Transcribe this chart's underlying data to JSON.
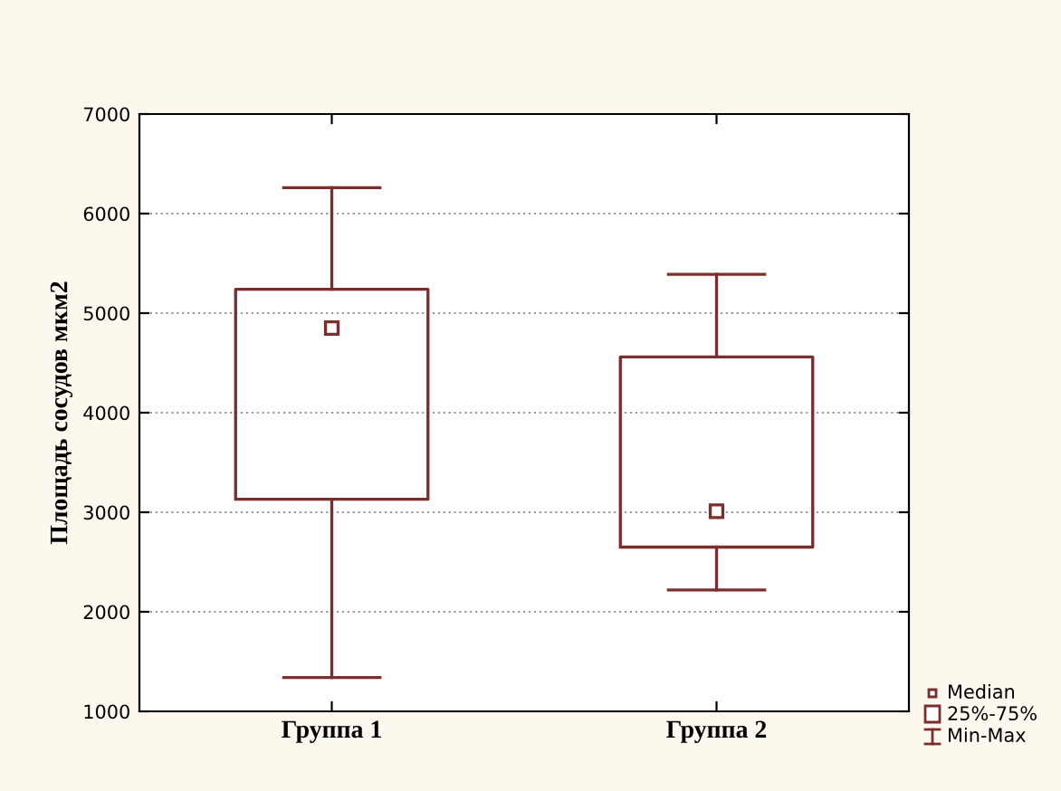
{
  "chart_data": {
    "type": "box",
    "ylabel": "Площадь сосудов мкм2",
    "categories": [
      "Группа 1",
      "Группа 2"
    ],
    "color": "#7b2e2e",
    "boxes": [
      {
        "low": 1340,
        "q1": 3130,
        "median": 4850,
        "q3": 5240,
        "high": 6260
      },
      {
        "low": 2220,
        "q1": 2650,
        "median": 3010,
        "q3": 4560,
        "high": 5390
      }
    ],
    "ylim": [
      1000,
      7000
    ],
    "yticks": [
      1000,
      2000,
      3000,
      4000,
      5000,
      6000,
      7000
    ],
    "grid": "y",
    "annotations": [
      "Median",
      "25%-75%",
      "Min-Max"
    ]
  }
}
